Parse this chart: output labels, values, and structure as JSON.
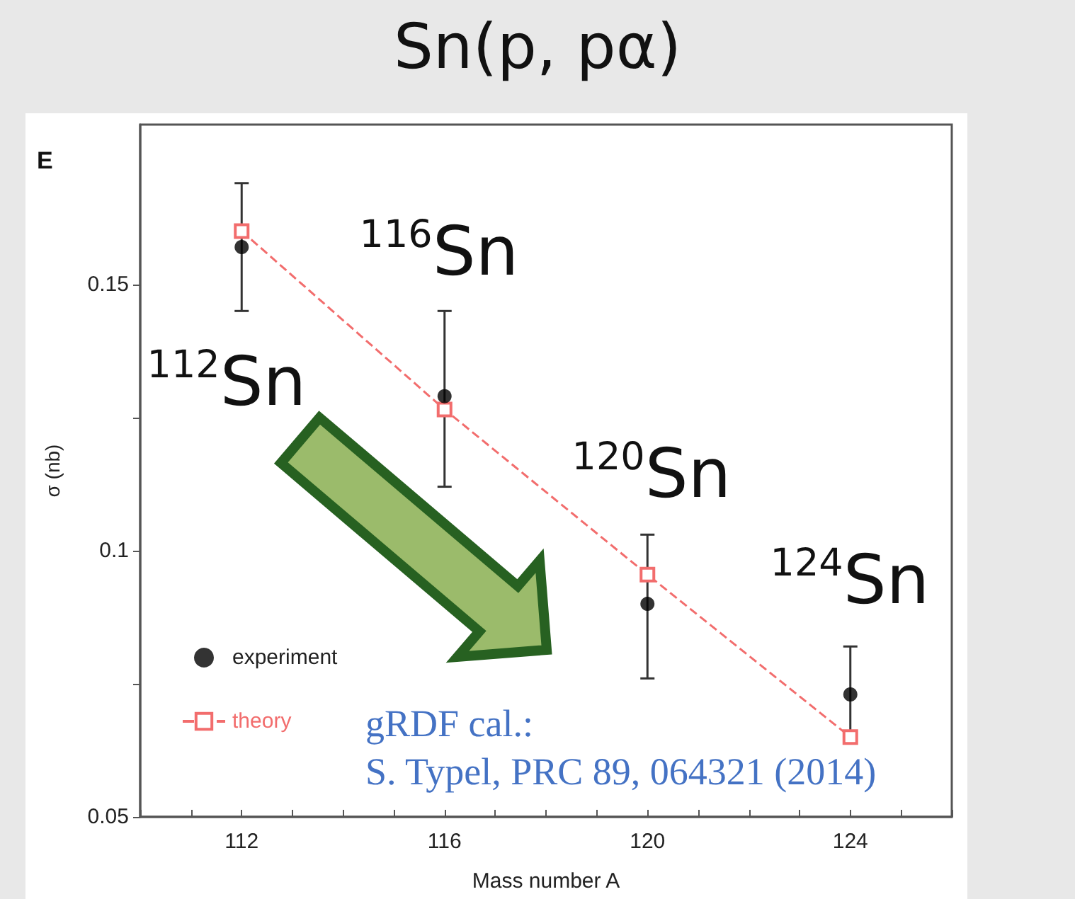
{
  "chart_data": {
    "type": "scatter",
    "title": "Sn(p, pα)",
    "xlabel": "Mass number A",
    "ylabel": "σ (nb)",
    "x": [
      112,
      116,
      120,
      124
    ],
    "series": [
      {
        "name": "experiment",
        "color": "#000000",
        "marker": "circle",
        "values": [
          0.157,
          0.129,
          0.09,
          0.073
        ],
        "errors": [
          [
            0.145,
            0.169
          ],
          [
            0.112,
            0.145
          ],
          [
            0.076,
            0.103
          ],
          [
            0.064,
            0.082
          ]
        ]
      },
      {
        "name": "theory",
        "type": "line",
        "color": "#f26d6d",
        "marker": "square",
        "line_style": "dashed",
        "values": [
          0.16,
          0.1265,
          0.0955,
          0.065
        ]
      }
    ],
    "xlim": [
      110,
      126
    ],
    "xticks": [
      {
        "value": 110,
        "label": null
      },
      {
        "value": 111,
        "label": null
      },
      112,
      {
        "value": 113,
        "label": null
      },
      {
        "value": 114,
        "label": null
      },
      {
        "value": 115,
        "label": null
      },
      116,
      {
        "value": 117,
        "label": null
      },
      {
        "value": 118,
        "label": null
      },
      {
        "value": 119,
        "label": null
      },
      120,
      {
        "value": 121,
        "label": null
      },
      {
        "value": 122,
        "label": null
      },
      {
        "value": 123,
        "label": null
      },
      124,
      {
        "value": 125,
        "label": null
      },
      {
        "value": 126,
        "label": null
      }
    ],
    "ylim": [
      0.05,
      0.18
    ],
    "yticks": [
      0.05,
      {
        "value": 0.075,
        "label": null
      },
      0.1,
      {
        "value": 0.125,
        "label": null
      },
      0.15
    ],
    "legend": "bottom left",
    "grid": false,
    "annotations": [
      "E",
      "$^{112}$Sn",
      "$^{116}$Sn",
      "$^{120}$Sn",
      "$^{124}$Sn",
      "gRDF cal.:\nS. Typel, PRC 89, 064321 (2014)"
    ]
  }
}
